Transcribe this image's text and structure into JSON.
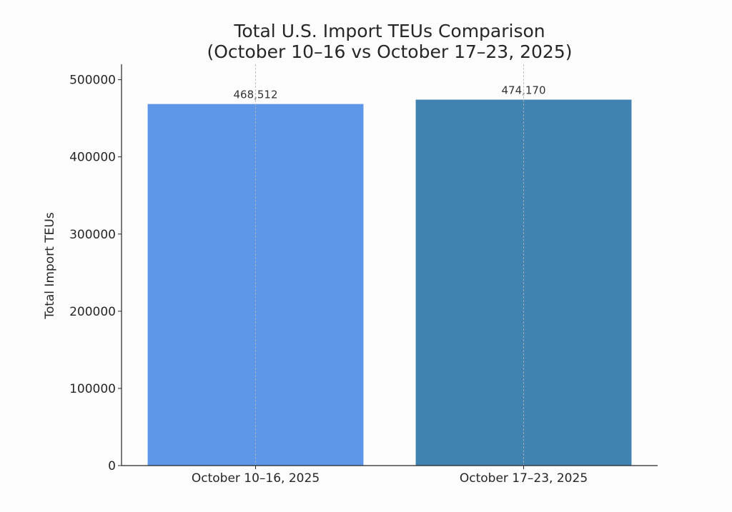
{
  "chart_data": {
    "type": "bar",
    "title": "Total U.S. Import TEUs Comparison",
    "subtitle": "(October 10–16 vs October 17–23, 2025)",
    "xlabel": "",
    "ylabel": "Total Import TEUs",
    "categories": [
      "October 10–16, 2025",
      "October 17–23, 2025"
    ],
    "values": [
      468512,
      474170
    ],
    "data_labels": [
      "468,512",
      "474,170"
    ],
    "colors": [
      "#5e96e8",
      "#4083b1"
    ],
    "ylim": [
      0,
      520000
    ],
    "yticks": [
      0,
      100000,
      200000,
      300000,
      400000,
      500000
    ],
    "ytick_labels": [
      "0",
      "100000",
      "200000",
      "300000",
      "400000",
      "500000"
    ],
    "grid": "x-only-dashed",
    "legend": "none"
  }
}
